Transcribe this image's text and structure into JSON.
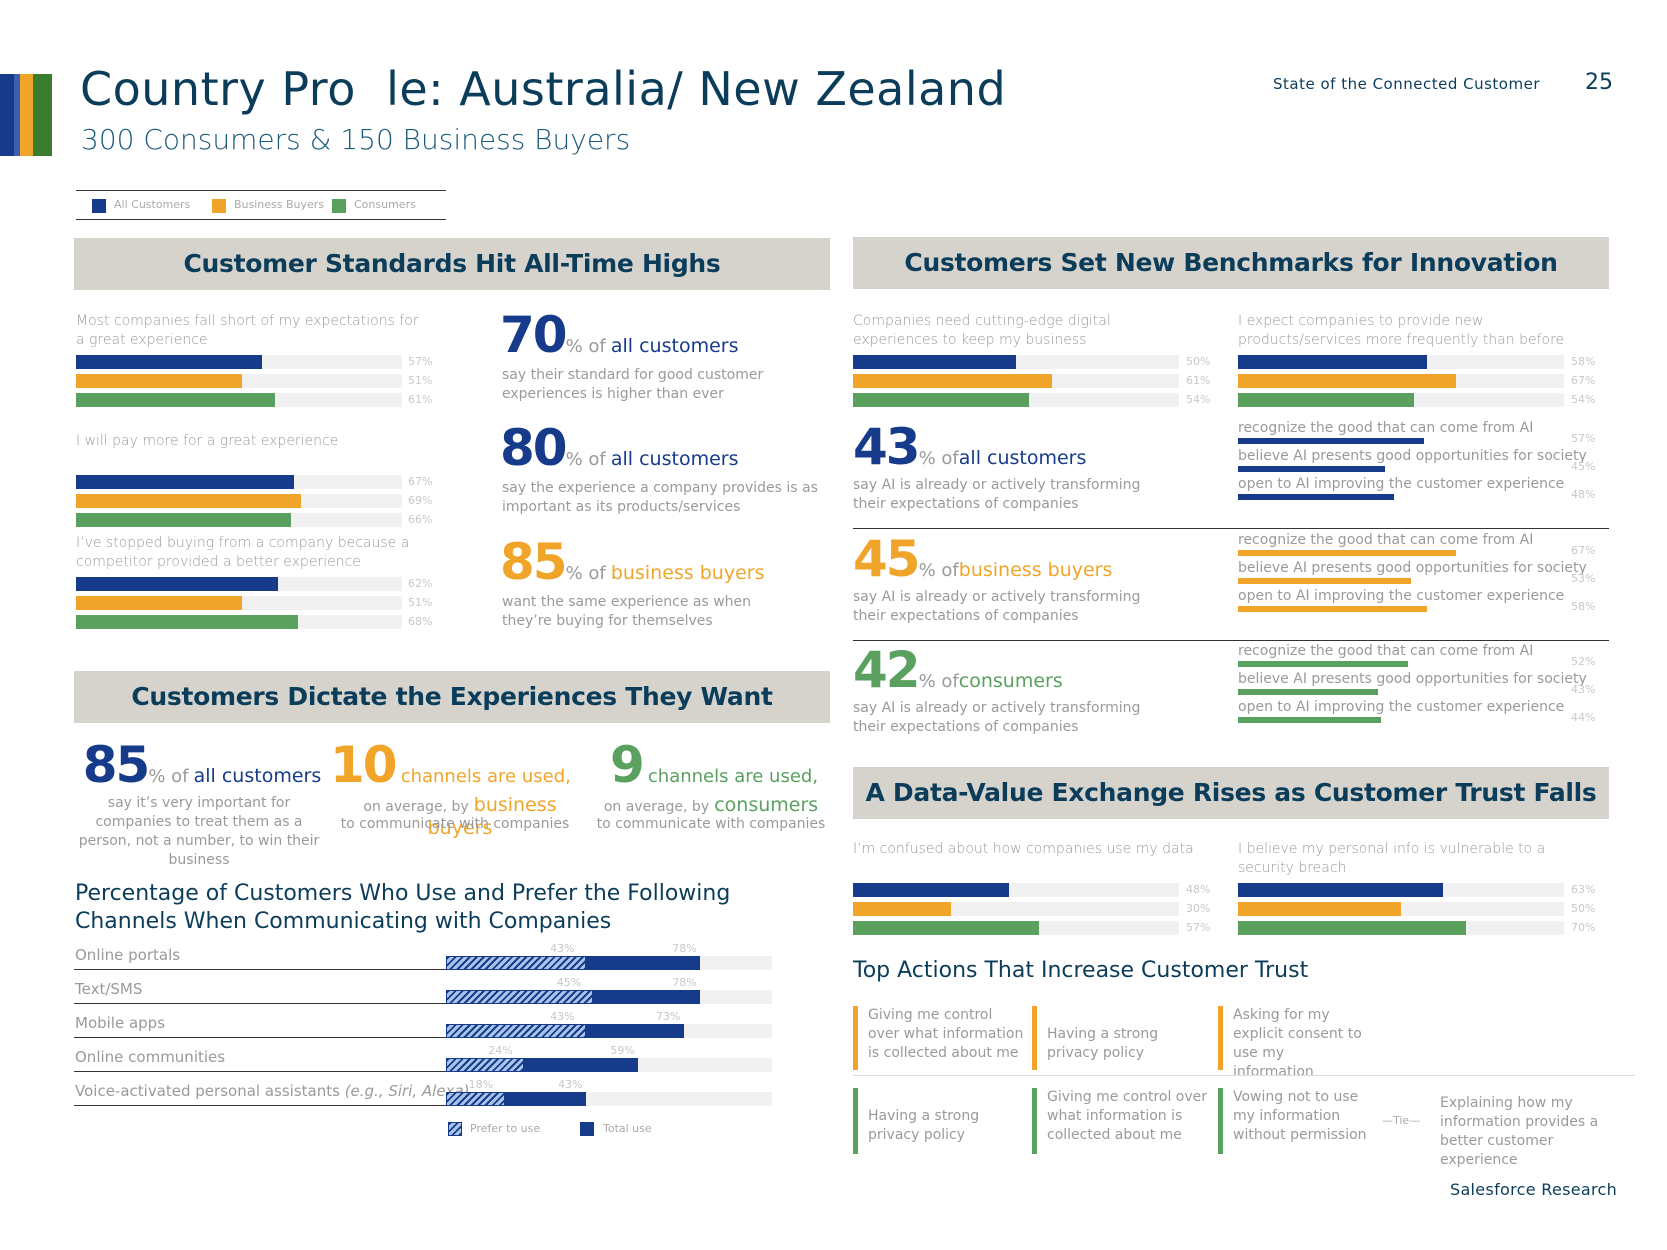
{
  "header": {
    "title": "Country Pro  le: Australia/ New Zealand",
    "subtitle": "300 Consumers & 150 Business Buyers",
    "report_name": "State of the Connected Customer",
    "page_number": "25",
    "footer": "Salesforce Research"
  },
  "colors": {
    "all_customers": "#163b8a",
    "business_buyers": "#f0a52a",
    "consumers": "#5aa05e"
  },
  "legend": [
    "All Customers",
    "Business Buyers",
    "Consumers"
  ],
  "standards": {
    "title": "Customer Standards Hit All-Time Highs",
    "questions": [
      {
        "text": "Most companies fall short of my expectations for a great experience",
        "values": [
          57,
          51,
          61
        ],
        "labels": [
          "57%",
          "51%",
          "61%"
        ]
      },
      {
        "text": "I will pay more for a great experience",
        "values": [
          67,
          69,
          66
        ],
        "labels": [
          "67%",
          "69%",
          "66%"
        ]
      },
      {
        "text": "I’ve stopped buying from a company because a competitor provided a better experience",
        "values": [
          62,
          51,
          68
        ],
        "labels": [
          "62%",
          "51%",
          "68%"
        ]
      }
    ],
    "stats": [
      {
        "num": "70",
        "unit": "% of",
        "who": "all customers",
        "desc": "say their standard for good customer experiences is higher than ever"
      },
      {
        "num": "80",
        "unit": "% of",
        "who": "all customers",
        "desc": "say the experience a company provides is as important as its products/services"
      },
      {
        "num": "85",
        "unit": "% of",
        "who": "business buyers",
        "desc": "want the same experience as when they’re buying for themselves"
      }
    ]
  },
  "dictate": {
    "title": "Customers Dictate the Experiences They Want",
    "stats": [
      {
        "num": "85",
        "unit": "% of",
        "who": "all customers",
        "desc": "say it’s very important for companies to treat them as a person, not a number, to win their business"
      },
      {
        "num": "10",
        "unit": "channels are used,",
        "pre": "on average, by",
        "who": "business buyers",
        "desc": "to communicate with companies"
      },
      {
        "num": "9",
        "unit": "channels are used,",
        "pre": "on average, by",
        "who": "consumers",
        "desc": "to communicate with companies"
      }
    ]
  },
  "channels": {
    "title_line1": "Percentage of Customers Who Use and Prefer the Following",
    "title_line2": "Channels When Communicating with Companies",
    "rows": [
      {
        "label": "Online portals",
        "label_em": "",
        "prefer": 43,
        "total": 78,
        "prefer_label": "43%",
        "total_label": "78%"
      },
      {
        "label": "Text/SMS",
        "label_em": "",
        "prefer": 45,
        "total": 78,
        "prefer_label": "45%",
        "total_label": "78%"
      },
      {
        "label": "Mobile apps",
        "label_em": "",
        "prefer": 43,
        "total": 73,
        "prefer_label": "43%",
        "total_label": "73%"
      },
      {
        "label": "Online communities",
        "label_em": "",
        "prefer": 24,
        "total": 59,
        "prefer_label": "24%",
        "total_label": "59%"
      },
      {
        "label": "Voice-activated personal assistants ",
        "label_em": "(e.g., Siri, Alexa)",
        "prefer": 18,
        "total": 43,
        "prefer_label": "18%",
        "total_label": "43%"
      }
    ],
    "legend_prefer": "Prefer to use",
    "legend_total": "Total use"
  },
  "innovation": {
    "title": "Customers Set New Benchmarks for Innovation",
    "questions": [
      {
        "text": "Companies need cutting-edge digital experiences to keep my business",
        "values": [
          50,
          61,
          54
        ],
        "labels": [
          "50%",
          "61%",
          "54%"
        ]
      },
      {
        "text": "I expect companies to provide new products/services more frequently than before",
        "values": [
          58,
          67,
          54
        ],
        "labels": [
          "58%",
          "67%",
          "54%"
        ]
      }
    ],
    "ai_label_1": "recognize the good that can come from AI",
    "ai_label_2": "believe AI presents good opportunities for society",
    "ai_label_3": "open to AI improving the customer experience",
    "ai_groups": [
      {
        "num": "43",
        "unit": "% of",
        "who": "all customers",
        "desc": "say AI is already or actively transforming their expectations of companies",
        "values": [
          57,
          45,
          48
        ],
        "labels": [
          "57%",
          "45%",
          "48%"
        ]
      },
      {
        "num": "45",
        "unit": "% of",
        "who": "business buyers",
        "desc": "say AI is already or actively transforming their expectations of companies",
        "values": [
          67,
          53,
          58
        ],
        "labels": [
          "67%",
          "53%",
          "58%"
        ]
      },
      {
        "num": "42",
        "unit": "% of",
        "who": "consumers",
        "desc": "say AI is already or actively transforming their expectations of companies",
        "values": [
          52,
          43,
          44
        ],
        "labels": [
          "52%",
          "43%",
          "44%"
        ]
      }
    ]
  },
  "trust": {
    "title": "A Data-Value Exchange Rises as Customer Trust Falls",
    "questions": [
      {
        "text": "I’m confused about how companies use my data",
        "values": [
          48,
          30,
          57
        ],
        "labels": [
          "48%",
          "30%",
          "57%"
        ]
      },
      {
        "text": "I believe my personal info is vulnerable to a security breach",
        "values": [
          63,
          50,
          70
        ],
        "labels": [
          "63%",
          "50%",
          "70%"
        ]
      }
    ],
    "actions_title": "Top Actions That Increase Customer Trust",
    "buyer_actions": [
      "Giving me control over what information is collected about me",
      "Having a strong privacy policy",
      "Asking for my explicit consent to use my information"
    ],
    "consumer_actions": [
      "Having a strong privacy policy",
      "Giving me control over what information is collected about me",
      "Vowing not to use my information without permission",
      "Explaining how my information provides a better customer experience"
    ],
    "tie_label": "—Tie—"
  }
}
